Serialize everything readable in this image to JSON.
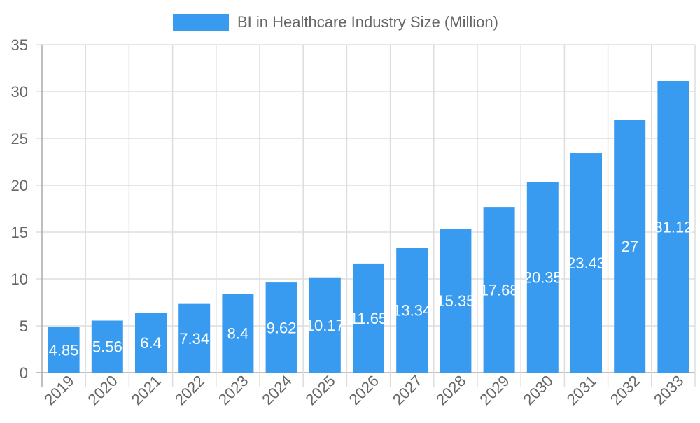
{
  "chart_data": {
    "type": "bar",
    "title": "",
    "xlabel": "",
    "ylabel": "",
    "ylim": [
      0,
      35
    ],
    "yticks": [
      0,
      5,
      10,
      15,
      20,
      25,
      30,
      35
    ],
    "grid": true,
    "legend_position": "top",
    "categories": [
      "2019",
      "2020",
      "2021",
      "2022",
      "2023",
      "2024",
      "2025",
      "2026",
      "2027",
      "2028",
      "2029",
      "2030",
      "2031",
      "2032",
      "2033"
    ],
    "series": [
      {
        "name": "BI in Healthcare Industry Size (Million)",
        "color": "#399bf0",
        "values": [
          4.85,
          5.56,
          6.4,
          7.34,
          8.4,
          9.62,
          10.17,
          11.65,
          13.34,
          15.35,
          17.68,
          20.35,
          23.43,
          27,
          31.12
        ]
      }
    ]
  }
}
